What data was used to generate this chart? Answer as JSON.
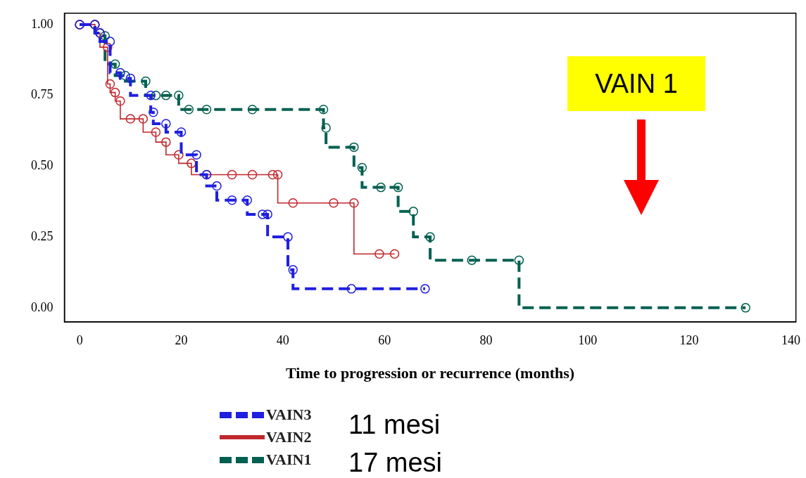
{
  "chart_data": {
    "type": "step",
    "xlabel": "Time to progression or recurrence (months)",
    "xlim": [
      -3,
      141
    ],
    "xticks": [
      0,
      20,
      40,
      60,
      80,
      100,
      120,
      140
    ],
    "ylim": [
      -0.05,
      1.04
    ],
    "yticks": [
      {
        "value": 0,
        "label": "0.00"
      },
      {
        "value": 0.25,
        "label": "0.25"
      },
      {
        "value": 0.5,
        "label": "0.50"
      },
      {
        "value": 0.75,
        "label": "0.75"
      },
      {
        "value": 1,
        "label": "1.00"
      }
    ],
    "grid": false,
    "legend": "bottom left",
    "marker": "circle",
    "annotations": [
      "VAIN 1",
      "11 mesi",
      "17 mesi"
    ],
    "series": [
      {
        "name": "VAIN3",
        "color": "#1f1fe0",
        "line_style": "dashed",
        "x": [
          0,
          3,
          4,
          6,
          8,
          10,
          14,
          14.5,
          17,
          20,
          23,
          25,
          27,
          30,
          33,
          36,
          37,
          41,
          42,
          53.5,
          68
        ],
        "values": [
          1,
          1,
          0.97,
          0.94,
          0.83,
          0.81,
          0.75,
          0.69,
          0.65,
          0.62,
          0.54,
          0.47,
          0.43,
          0.38,
          0.38,
          0.33,
          0.33,
          0.25,
          0.134,
          0.067,
          0.067
        ]
      },
      {
        "name": "VAIN2",
        "color": "#c0282d",
        "line_style": "solid",
        "x": [
          0,
          3,
          4,
          5.5,
          6,
          7,
          8,
          10,
          12.5,
          15,
          17,
          19.5,
          22,
          25,
          30,
          34,
          38,
          39,
          42,
          50,
          54,
          59,
          62
        ],
        "values": [
          1,
          1,
          0.97,
          0.92,
          0.79,
          0.76,
          0.73,
          0.667,
          0.667,
          0.62,
          0.585,
          0.54,
          0.51,
          0.47,
          0.47,
          0.47,
          0.47,
          0.47,
          0.37,
          0.37,
          0.37,
          0.19,
          0.19
        ]
      },
      {
        "name": "VAIN1",
        "color": "#006050",
        "line_style": "dashed",
        "x": [
          0,
          3,
          4,
          5,
          7,
          9,
          13,
          15,
          17,
          19.5,
          21.5,
          25,
          34,
          48,
          48.5,
          54,
          55.6,
          59.3,
          62.7,
          65.7,
          69,
          77.2,
          86.5,
          131.1
        ],
        "values": [
          1,
          1,
          0.97,
          0.96,
          0.86,
          0.82,
          0.8,
          0.75,
          0.75,
          0.75,
          0.7,
          0.7,
          0.7,
          0.7,
          0.635,
          0.567,
          0.495,
          0.425,
          0.425,
          0.34,
          0.25,
          0.168,
          0.168,
          0
        ]
      }
    ]
  }
}
